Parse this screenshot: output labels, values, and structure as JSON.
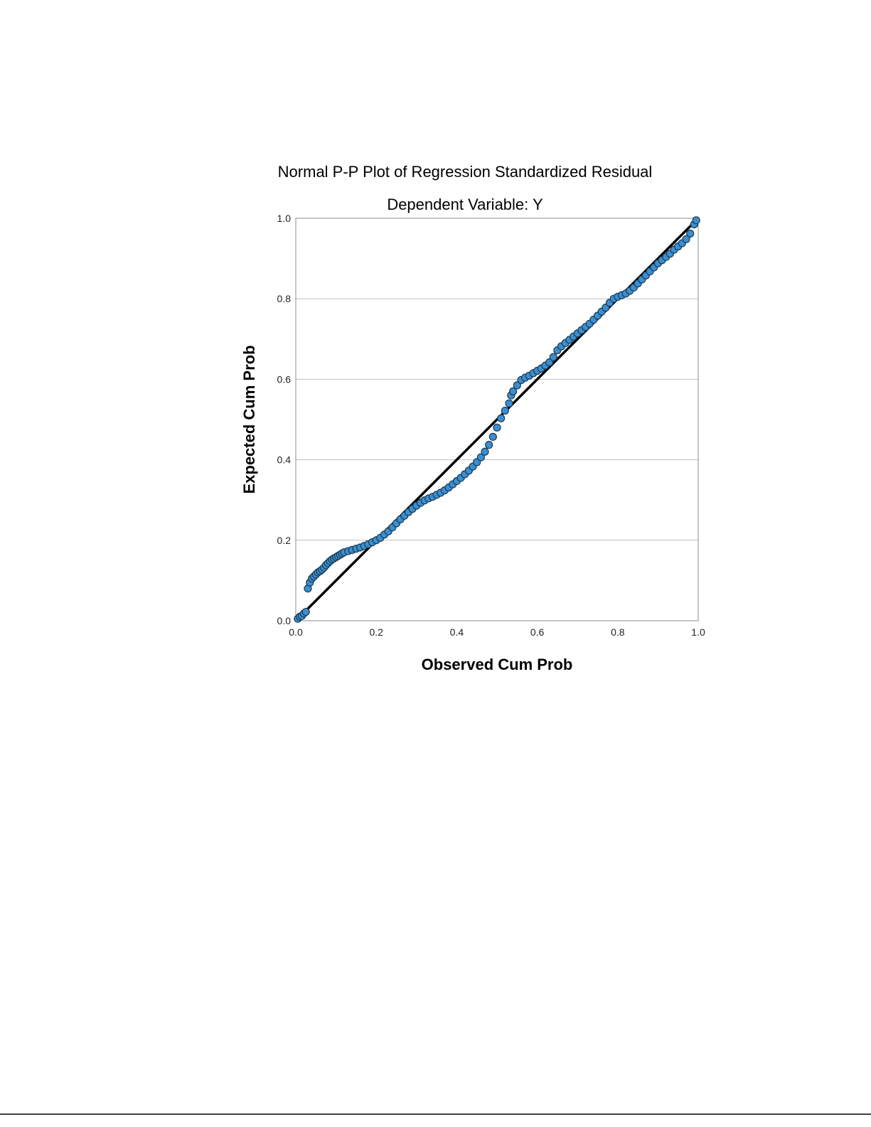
{
  "chart_data": {
    "type": "scatter",
    "title": "Normal P-P Plot of Regression Standardized Residual",
    "subtitle": "Dependent Variable: Y",
    "xlabel": "Observed Cum Prob",
    "ylabel": "Expected Cum Prob",
    "xlim": [
      0,
      1
    ],
    "ylim": [
      0,
      1
    ],
    "xticks": [
      "0.0",
      "0.2",
      "0.4",
      "0.6",
      "0.8",
      "1.0"
    ],
    "yticks": [
      "0.0",
      "0.2",
      "0.4",
      "0.6",
      "0.8",
      "1.0"
    ],
    "grid": "horizontal",
    "legend": "none",
    "point_color": "#3b8fd0",
    "point_edge_color": "#1b3a52",
    "reference_line": {
      "from": [
        0,
        0
      ],
      "to": [
        1,
        1
      ],
      "color": "#000000"
    },
    "series": [
      {
        "points": [
          [
            0.005,
            0.005
          ],
          [
            0.01,
            0.01
          ],
          [
            0.015,
            0.012
          ],
          [
            0.02,
            0.018
          ],
          [
            0.025,
            0.022
          ],
          [
            0.03,
            0.08
          ],
          [
            0.035,
            0.095
          ],
          [
            0.04,
            0.105
          ],
          [
            0.045,
            0.11
          ],
          [
            0.05,
            0.115
          ],
          [
            0.055,
            0.12
          ],
          [
            0.06,
            0.123
          ],
          [
            0.065,
            0.127
          ],
          [
            0.07,
            0.132
          ],
          [
            0.075,
            0.138
          ],
          [
            0.08,
            0.143
          ],
          [
            0.085,
            0.148
          ],
          [
            0.09,
            0.152
          ],
          [
            0.095,
            0.155
          ],
          [
            0.1,
            0.158
          ],
          [
            0.105,
            0.161
          ],
          [
            0.11,
            0.164
          ],
          [
            0.115,
            0.167
          ],
          [
            0.12,
            0.17
          ],
          [
            0.13,
            0.173
          ],
          [
            0.14,
            0.176
          ],
          [
            0.15,
            0.179
          ],
          [
            0.16,
            0.182
          ],
          [
            0.17,
            0.186
          ],
          [
            0.18,
            0.19
          ],
          [
            0.19,
            0.195
          ],
          [
            0.2,
            0.2
          ],
          [
            0.21,
            0.206
          ],
          [
            0.22,
            0.214
          ],
          [
            0.23,
            0.222
          ],
          [
            0.24,
            0.232
          ],
          [
            0.25,
            0.242
          ],
          [
            0.26,
            0.252
          ],
          [
            0.27,
            0.261
          ],
          [
            0.28,
            0.27
          ],
          [
            0.29,
            0.278
          ],
          [
            0.3,
            0.286
          ],
          [
            0.31,
            0.293
          ],
          [
            0.32,
            0.299
          ],
          [
            0.33,
            0.304
          ],
          [
            0.34,
            0.308
          ],
          [
            0.35,
            0.313
          ],
          [
            0.36,
            0.318
          ],
          [
            0.37,
            0.324
          ],
          [
            0.38,
            0.331
          ],
          [
            0.39,
            0.339
          ],
          [
            0.4,
            0.347
          ],
          [
            0.41,
            0.355
          ],
          [
            0.42,
            0.364
          ],
          [
            0.43,
            0.373
          ],
          [
            0.44,
            0.383
          ],
          [
            0.45,
            0.394
          ],
          [
            0.46,
            0.406
          ],
          [
            0.47,
            0.42
          ],
          [
            0.48,
            0.437
          ],
          [
            0.49,
            0.457
          ],
          [
            0.5,
            0.48
          ],
          [
            0.51,
            0.503
          ],
          [
            0.52,
            0.522
          ],
          [
            0.53,
            0.54
          ],
          [
            0.535,
            0.56
          ],
          [
            0.54,
            0.57
          ],
          [
            0.55,
            0.585
          ],
          [
            0.56,
            0.598
          ],
          [
            0.57,
            0.604
          ],
          [
            0.58,
            0.609
          ],
          [
            0.59,
            0.615
          ],
          [
            0.6,
            0.621
          ],
          [
            0.61,
            0.627
          ],
          [
            0.62,
            0.634
          ],
          [
            0.63,
            0.642
          ],
          [
            0.64,
            0.655
          ],
          [
            0.65,
            0.672
          ],
          [
            0.66,
            0.682
          ],
          [
            0.67,
            0.69
          ],
          [
            0.68,
            0.698
          ],
          [
            0.69,
            0.706
          ],
          [
            0.7,
            0.714
          ],
          [
            0.71,
            0.722
          ],
          [
            0.72,
            0.73
          ],
          [
            0.73,
            0.738
          ],
          [
            0.74,
            0.748
          ],
          [
            0.75,
            0.758
          ],
          [
            0.76,
            0.768
          ],
          [
            0.77,
            0.778
          ],
          [
            0.78,
            0.79
          ],
          [
            0.79,
            0.8
          ],
          [
            0.8,
            0.805
          ],
          [
            0.81,
            0.809
          ],
          [
            0.82,
            0.813
          ],
          [
            0.83,
            0.82
          ],
          [
            0.84,
            0.828
          ],
          [
            0.85,
            0.838
          ],
          [
            0.86,
            0.848
          ],
          [
            0.87,
            0.858
          ],
          [
            0.88,
            0.868
          ],
          [
            0.89,
            0.878
          ],
          [
            0.9,
            0.888
          ],
          [
            0.91,
            0.896
          ],
          [
            0.92,
            0.904
          ],
          [
            0.93,
            0.912
          ],
          [
            0.94,
            0.922
          ],
          [
            0.95,
            0.93
          ],
          [
            0.96,
            0.938
          ],
          [
            0.97,
            0.948
          ],
          [
            0.98,
            0.962
          ],
          [
            0.99,
            0.985
          ],
          [
            0.995,
            0.995
          ]
        ]
      }
    ]
  }
}
